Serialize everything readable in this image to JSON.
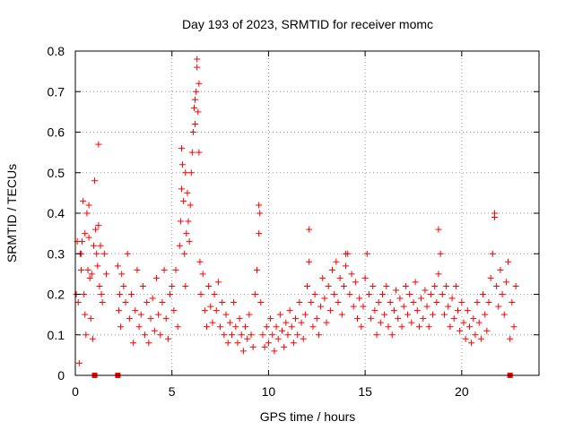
{
  "chart_data": {
    "type": "scatter",
    "title": "Day 193 of 2023, SRMTID for receiver momc",
    "xlabel": "GPS time / hours",
    "ylabel": "SRMTID / TECUs",
    "xlim": [
      0,
      24
    ],
    "ylim": [
      0,
      0.8
    ],
    "x_ticks": [
      0,
      5,
      10,
      15,
      20
    ],
    "x_tick_labels": [
      "0",
      "5",
      "10",
      "15",
      "20"
    ],
    "y_ticks": [
      0,
      0.1,
      0.2,
      0.3,
      0.4,
      0.5,
      0.6,
      0.7,
      0.8
    ],
    "y_tick_labels": [
      "0",
      "0.1",
      "0.2",
      "0.3",
      "0.4",
      "0.5",
      "0.6",
      "0.7",
      "0.8"
    ],
    "grid": true,
    "marker": "plus",
    "color": "#ff0000",
    "series": [
      {
        "name": "SRMTID",
        "x": [
          0.05,
          0.1,
          0.15,
          0.2,
          0.25,
          0.3,
          0.35,
          0.4,
          0.45,
          0.5,
          0.55,
          0.6,
          0.65,
          0.7,
          0.75,
          0.8,
          0.85,
          0.9,
          0.95,
          1.0,
          1.05,
          1.1,
          1.15,
          1.2,
          1.25,
          1.3,
          1.35,
          1.4,
          1.5,
          1.6,
          2.2,
          2.25,
          2.3,
          2.35,
          2.4,
          2.5,
          2.6,
          2.7,
          2.8,
          2.9,
          3.0,
          3.1,
          3.2,
          3.3,
          3.4,
          3.5,
          3.6,
          3.7,
          3.8,
          3.9,
          4.0,
          4.1,
          4.2,
          4.3,
          4.4,
          4.5,
          4.6,
          4.7,
          4.8,
          4.9,
          5.0,
          5.1,
          5.2,
          5.3,
          5.4,
          5.45,
          5.5,
          5.55,
          5.6,
          5.65,
          5.7,
          5.75,
          5.8,
          5.85,
          5.9,
          5.95,
          6.0,
          6.05,
          6.1,
          6.15,
          6.2,
          6.25,
          6.3,
          6.35,
          6.4,
          6.45,
          6.5,
          6.6,
          6.7,
          6.8,
          6.9,
          7.0,
          7.1,
          7.2,
          7.3,
          7.4,
          7.5,
          7.6,
          7.7,
          7.8,
          7.9,
          8.0,
          8.1,
          8.2,
          8.3,
          8.4,
          8.5,
          8.6,
          8.7,
          8.8,
          8.9,
          9.0,
          9.1,
          9.2,
          9.3,
          9.4,
          9.5,
          9.55,
          9.6,
          9.7,
          9.8,
          9.9,
          10.0,
          10.1,
          10.2,
          10.3,
          10.4,
          10.5,
          10.6,
          10.7,
          10.8,
          10.9,
          11.0,
          11.1,
          11.2,
          11.3,
          11.4,
          11.5,
          11.6,
          11.7,
          11.8,
          11.9,
          12.0,
          12.1,
          12.2,
          12.3,
          12.4,
          12.5,
          12.6,
          12.7,
          12.8,
          12.9,
          13.0,
          13.1,
          13.2,
          13.3,
          13.4,
          13.5,
          13.6,
          13.7,
          13.8,
          13.9,
          14.0,
          14.1,
          14.2,
          14.3,
          14.4,
          14.5,
          14.6,
          14.7,
          14.8,
          14.9,
          15.0,
          15.1,
          15.2,
          15.3,
          15.4,
          15.5,
          15.6,
          15.7,
          15.8,
          15.9,
          16.0,
          16.1,
          16.2,
          16.3,
          16.4,
          16.5,
          16.6,
          16.7,
          16.8,
          16.9,
          17.0,
          17.1,
          17.2,
          17.3,
          17.4,
          17.5,
          17.6,
          17.7,
          17.8,
          17.9,
          18.0,
          18.1,
          18.2,
          18.3,
          18.4,
          18.5,
          18.6,
          18.7,
          18.8,
          18.9,
          19.0,
          19.1,
          19.2,
          19.3,
          19.4,
          19.5,
          19.6,
          19.7,
          19.8,
          19.9,
          20.0,
          20.1,
          20.2,
          20.3,
          20.4,
          20.5,
          20.6,
          20.7,
          20.8,
          20.9,
          21.0,
          21.1,
          21.2,
          21.3,
          21.4,
          21.5,
          21.6,
          21.7,
          21.8,
          21.9,
          22.0,
          22.1,
          22.2,
          22.3,
          22.4,
          22.5,
          22.6,
          22.7,
          22.8,
          0.3,
          0.5,
          0.7,
          1.2,
          5.5,
          5.7,
          6.2,
          6.3,
          6.4,
          9.5,
          12.1,
          14.0,
          18.8,
          21.7
        ],
        "y": [
          0.2,
          0.33,
          0.18,
          0.03,
          0.3,
          0.26,
          0.33,
          0.43,
          0.2,
          0.15,
          0.1,
          0.4,
          0.26,
          0.34,
          0.24,
          0.14,
          0.25,
          0.09,
          0.32,
          0.48,
          0.36,
          0.3,
          0.27,
          0.37,
          0.22,
          0.32,
          0.2,
          0.18,
          0.3,
          0.25,
          0.27,
          0.16,
          0.2,
          0.12,
          0.25,
          0.22,
          0.18,
          0.3,
          0.14,
          0.2,
          0.08,
          0.16,
          0.26,
          0.12,
          0.15,
          0.22,
          0.1,
          0.18,
          0.08,
          0.14,
          0.19,
          0.11,
          0.24,
          0.15,
          0.1,
          0.18,
          0.26,
          0.14,
          0.09,
          0.2,
          0.22,
          0.16,
          0.26,
          0.12,
          0.32,
          0.38,
          0.46,
          0.52,
          0.43,
          0.3,
          0.22,
          0.35,
          0.45,
          0.38,
          0.33,
          0.42,
          0.5,
          0.55,
          0.6,
          0.66,
          0.62,
          0.7,
          0.76,
          0.65,
          0.55,
          0.28,
          0.2,
          0.25,
          0.16,
          0.12,
          0.22,
          0.17,
          0.13,
          0.2,
          0.16,
          0.23,
          0.12,
          0.18,
          0.1,
          0.15,
          0.08,
          0.13,
          0.1,
          0.18,
          0.12,
          0.08,
          0.14,
          0.1,
          0.06,
          0.12,
          0.09,
          0.15,
          0.1,
          0.07,
          0.2,
          0.26,
          0.35,
          0.4,
          0.18,
          0.1,
          0.07,
          0.12,
          0.08,
          0.14,
          0.1,
          0.06,
          0.12,
          0.09,
          0.15,
          0.11,
          0.07,
          0.13,
          0.1,
          0.16,
          0.12,
          0.08,
          0.14,
          0.1,
          0.18,
          0.13,
          0.09,
          0.15,
          0.22,
          0.28,
          0.18,
          0.12,
          0.2,
          0.14,
          0.1,
          0.17,
          0.24,
          0.19,
          0.13,
          0.22,
          0.16,
          0.26,
          0.2,
          0.28,
          0.18,
          0.24,
          0.15,
          0.22,
          0.27,
          0.3,
          0.2,
          0.25,
          0.17,
          0.23,
          0.14,
          0.19,
          0.12,
          0.17,
          0.24,
          0.3,
          0.2,
          0.14,
          0.22,
          0.16,
          0.1,
          0.18,
          0.13,
          0.2,
          0.15,
          0.22,
          0.12,
          0.18,
          0.1,
          0.16,
          0.21,
          0.14,
          0.19,
          0.12,
          0.17,
          0.22,
          0.15,
          0.2,
          0.13,
          0.18,
          0.23,
          0.16,
          0.12,
          0.19,
          0.14,
          0.21,
          0.17,
          0.12,
          0.2,
          0.15,
          0.22,
          0.18,
          0.25,
          0.3,
          0.2,
          0.15,
          0.22,
          0.17,
          0.12,
          0.19,
          0.14,
          0.22,
          0.16,
          0.11,
          0.18,
          0.13,
          0.09,
          0.16,
          0.12,
          0.08,
          0.14,
          0.1,
          0.18,
          0.13,
          0.09,
          0.2,
          0.15,
          0.11,
          0.18,
          0.24,
          0.3,
          0.39,
          0.22,
          0.17,
          0.26,
          0.2,
          0.15,
          0.23,
          0.28,
          0.09,
          0.18,
          0.12,
          0.22,
          0.3,
          0.35,
          0.42,
          0.57,
          0.56,
          0.5,
          0.68,
          0.78,
          0.72,
          0.42,
          0.36,
          0.3,
          0.36,
          0.4
        ]
      }
    ],
    "low_markers": {
      "x": [
        1.0,
        2.2,
        22.5
      ],
      "y": [
        0,
        0,
        0
      ]
    }
  }
}
